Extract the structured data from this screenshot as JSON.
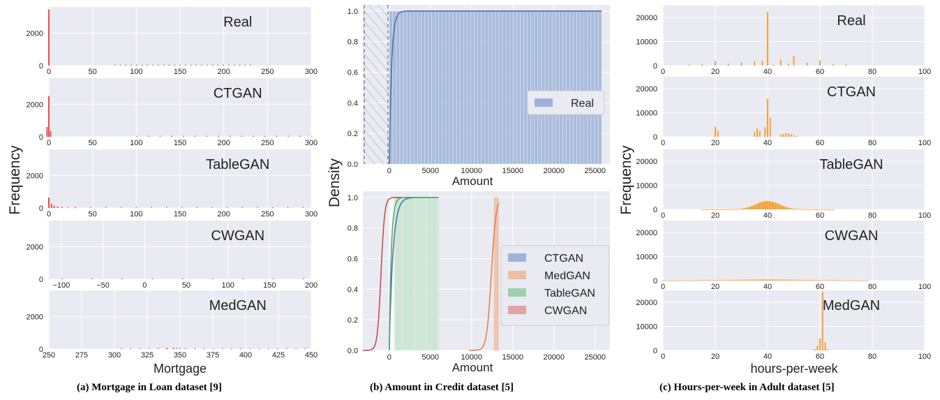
{
  "captions": {
    "a": "(a) Mortgage in Loan dataset [9]",
    "b": "(b) Amount in Credit dataset [5]",
    "c": "(c) Hours-per-week in Adult dataset [5]"
  },
  "colors": {
    "panel_bg": "#eaeaf2",
    "mortgage_bar": "#ef4b4b",
    "hours_bar": "#f4a23a",
    "real_fill": "#9fb3d8",
    "real_line": "#4c72b0",
    "ctgan": "#4c72b0",
    "medgan": "#dd8452",
    "tablegan": "#55a868",
    "cwgan": "#c44e52"
  },
  "chart_data": [
    {
      "type": "bar",
      "id": "mortgage",
      "ylabel": "Frequency",
      "xlabel": "Mortgage",
      "panels": [
        {
          "name": "Real",
          "xlim": [
            0,
            300
          ],
          "xticks": [
            0,
            50,
            100,
            150,
            200,
            250,
            300
          ],
          "ylim": [
            0,
            3600
          ],
          "yticks": [
            0,
            2000
          ],
          "bars": [
            [
              0,
              3450
            ]
          ],
          "tail": [
            75,
            230,
            25
          ]
        },
        {
          "name": "CTGAN",
          "xlim": [
            0,
            300
          ],
          "xticks": [
            0,
            50,
            100,
            150,
            200,
            250,
            300
          ],
          "ylim": [
            0,
            3600
          ],
          "yticks": [
            0,
            2000
          ],
          "bars": [
            [
              -2,
              600
            ],
            [
              0,
              2500
            ],
            [
              2,
              350
            ]
          ],
          "tail": [
            100,
            300,
            15
          ]
        },
        {
          "name": "TableGAN",
          "xlim": [
            0,
            300
          ],
          "xticks": [
            0,
            50,
            100,
            150,
            200,
            250,
            300
          ],
          "ylim": [
            0,
            3600
          ],
          "yticks": [
            0,
            2000
          ],
          "bars": [
            [
              0,
              650
            ],
            [
              3,
              250
            ],
            [
              6,
              140
            ],
            [
              10,
              90
            ],
            [
              15,
              60
            ],
            [
              22,
              40
            ],
            [
              30,
              25
            ]
          ],
          "tail": [
            30,
            290,
            15
          ]
        },
        {
          "name": "CWGAN",
          "xlim": [
            -115,
            200
          ],
          "xticks": [
            -100,
            -50,
            0,
            50,
            100,
            150,
            200
          ],
          "ylim": [
            0,
            3600
          ],
          "yticks": [
            0,
            2000
          ],
          "bars": [],
          "tail": [
            -100,
            190,
            8
          ]
        },
        {
          "name": "MedGAN",
          "xlim": [
            250,
            450
          ],
          "xticks": [
            250,
            275,
            300,
            325,
            350,
            375,
            400,
            425,
            450
          ],
          "ylim": [
            0,
            3600
          ],
          "yticks": [
            0,
            2000
          ],
          "bars": [
            [
              340,
              60
            ],
            [
              345,
              70
            ],
            [
              350,
              55
            ]
          ],
          "tail": [
            305,
            445,
            20
          ]
        }
      ]
    },
    {
      "type": "line",
      "id": "amount",
      "ylabel": "Density",
      "panels": [
        {
          "xlabel": "Amount",
          "xlim": [
            -3200,
            26800
          ],
          "xticks": [
            0,
            5000,
            10000,
            15000,
            20000,
            25000
          ],
          "ylim": [
            0,
            1.04
          ],
          "yticks": [
            0.0,
            0.2,
            0.4,
            0.6,
            0.8,
            1.0
          ],
          "legend": [
            "Real"
          ],
          "legend_loc": "center-right",
          "hatch_range": [
            -3200,
            -150
          ]
        },
        {
          "xlabel": "Amount",
          "xlim": [
            -3200,
            26800
          ],
          "xticks": [
            0,
            5000,
            10000,
            15000,
            20000,
            25000
          ],
          "ylim": [
            0,
            1.04
          ],
          "yticks": [
            0.0,
            0.2,
            0.4,
            0.6,
            0.8,
            1.0
          ],
          "legend": [
            "CTGAN",
            "MedGAN",
            "TableGAN",
            "CWGAN"
          ],
          "legend_loc": "center-right"
        }
      ]
    },
    {
      "type": "bar",
      "id": "hours",
      "ylabel": "Frequency",
      "xlabel": "hours-per-week",
      "panels": [
        {
          "name": "Real",
          "xlim": [
            0,
            100
          ],
          "xticks": [
            0,
            20,
            40,
            60,
            80,
            100
          ],
          "ylim": [
            0,
            25000
          ],
          "yticks": [
            0,
            10000,
            20000
          ],
          "bars": [
            [
              10,
              400
            ],
            [
              15,
              600
            ],
            [
              20,
              1900
            ],
            [
              25,
              800
            ],
            [
              30,
              1300
            ],
            [
              35,
              1800
            ],
            [
              38,
              2000
            ],
            [
              40,
              22500
            ],
            [
              42,
              400
            ],
            [
              45,
              2500
            ],
            [
              48,
              800
            ],
            [
              50,
              4000
            ],
            [
              55,
              1300
            ],
            [
              60,
              2200
            ],
            [
              65,
              500
            ],
            [
              70,
              400
            ]
          ]
        },
        {
          "name": "CTGAN",
          "xlim": [
            0,
            100
          ],
          "xticks": [
            0,
            20,
            40,
            60,
            80,
            100
          ],
          "ylim": [
            0,
            25000
          ],
          "yticks": [
            0,
            10000,
            20000
          ],
          "bars": [
            [
              20,
              4200
            ],
            [
              21,
              2500
            ],
            [
              35,
              2000
            ],
            [
              36,
              3500
            ],
            [
              37,
              2500
            ],
            [
              39,
              4000
            ],
            [
              40,
              15800
            ],
            [
              41,
              8000
            ],
            [
              45,
              1000
            ],
            [
              46,
              1300
            ],
            [
              47,
              1500
            ],
            [
              48,
              1400
            ],
            [
              49,
              1100
            ],
            [
              50,
              700
            ],
            [
              51,
              300
            ]
          ]
        },
        {
          "name": "TableGAN",
          "xlim": [
            0,
            100
          ],
          "xticks": [
            0,
            20,
            40,
            60,
            80,
            100
          ],
          "ylim": [
            0,
            25000
          ],
          "yticks": [
            0,
            10000,
            20000
          ],
          "gauss": [
            40,
            4.5,
            3500,
            15,
            65
          ]
        },
        {
          "name": "CWGAN",
          "xlim": [
            0,
            100
          ],
          "xticks": [
            0,
            20,
            40,
            60,
            80,
            100
          ],
          "ylim": [
            0,
            25000
          ],
          "yticks": [
            0,
            10000,
            20000
          ],
          "gauss": [
            40,
            16,
            450,
            0,
            78
          ]
        },
        {
          "name": "MedGAN",
          "xlim": [
            0,
            100
          ],
          "xticks": [
            0,
            20,
            40,
            60,
            80,
            100
          ],
          "ylim": [
            0,
            25000
          ],
          "yticks": [
            0,
            10000,
            20000
          ],
          "bars": [
            [
              58,
              600
            ],
            [
              59,
              2000
            ],
            [
              60,
              5000
            ],
            [
              61,
              24500
            ],
            [
              62,
              3500
            ],
            [
              63,
              500
            ]
          ]
        }
      ]
    }
  ]
}
